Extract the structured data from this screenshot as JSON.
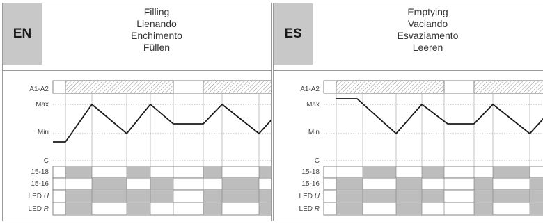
{
  "panels": [
    {
      "lang": "EN",
      "titles": [
        "Filling",
        "Llenando",
        "Enchimento",
        "Füllen"
      ],
      "lanes": [
        "A1-A2",
        "Max",
        "Min",
        "C",
        "15-18",
        "15-16",
        "LED",
        "LED"
      ],
      "led_u": "U",
      "led_r": "R",
      "colors": {
        "fill": "#bdbdbd",
        "tab": "#c8c8c8",
        "line": "#1a1a1a"
      }
    },
    {
      "lang": "ES",
      "titles": [
        "Emptying",
        "Vaciando",
        "Esvaziamento",
        "Leeren"
      ],
      "lanes": [
        "A1-A2",
        "Max",
        "Min",
        "C",
        "15-18",
        "15-16",
        "LED",
        "LED"
      ],
      "led_u": "U",
      "led_r": "R",
      "colors": {
        "fill": "#bdbdbd",
        "tab": "#c8c8c8",
        "line": "#1a1a1a"
      }
    }
  ]
}
